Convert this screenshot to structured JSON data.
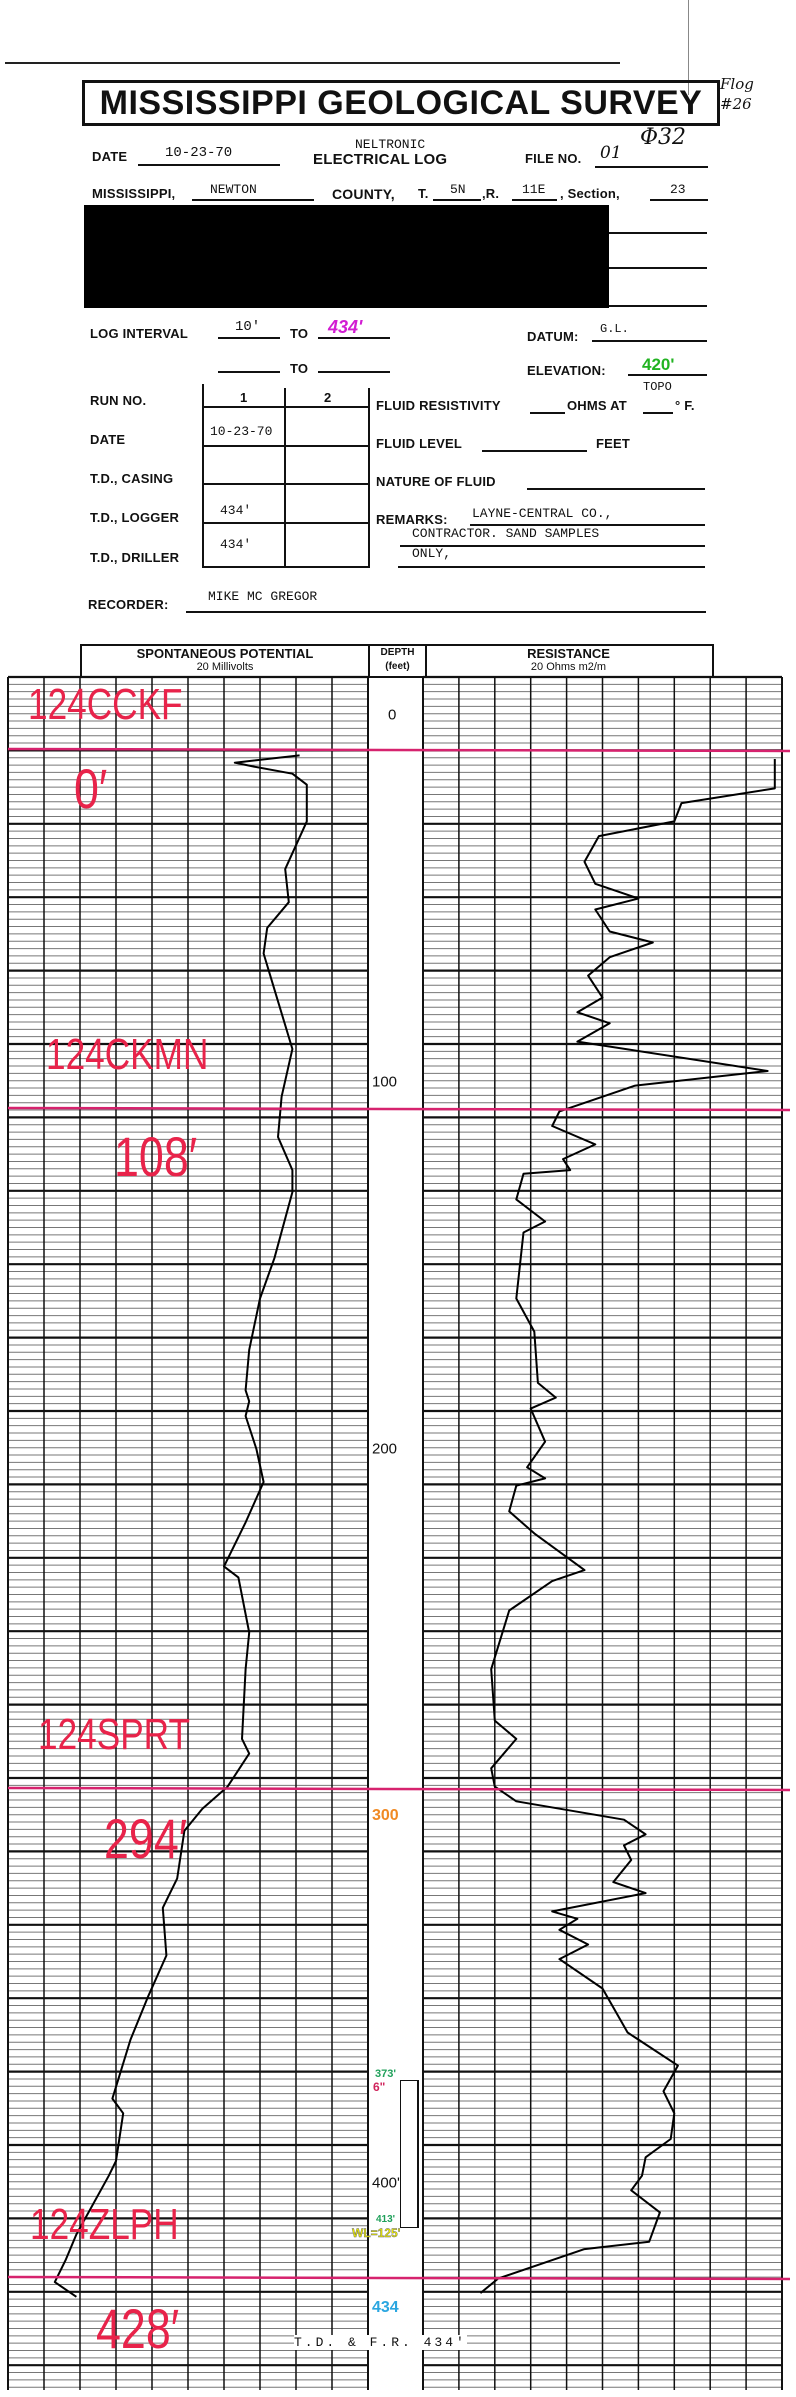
{
  "header": {
    "title": "MISSISSIPPI GEOLOGICAL SURVEY",
    "handwritten_flag": "Flog #26",
    "handwritten_number": "Φ32",
    "date_label": "DATE",
    "date_value": "10-23-70",
    "log_type_top": "NELTRONIC",
    "log_type": "ELECTRICAL LOG",
    "file_no_label": "FILE NO.",
    "file_no_value": "01",
    "state_label": "MISSISSIPPI,",
    "county_value": "NEWTON",
    "county_label": "COUNTY,",
    "township_label": "T.",
    "township_value": "5N",
    "range_label": ",R.",
    "range_value": "11E",
    "section_label": ", Section,",
    "section_value": "23",
    "log_interval_label": "LOG INTERVAL",
    "log_interval_from": "10'",
    "to_label": "TO",
    "log_interval_to": "434'",
    "datum_label": "DATUM:",
    "datum_value": "G.L.",
    "elevation_label": "ELEVATION:",
    "elevation_value": "420'",
    "elevation_note": "TOPO",
    "run_table": {
      "row_labels": [
        "RUN NO.",
        "DATE",
        "T.D., CASING",
        "T.D., LOGGER",
        "T.D., DRILLER"
      ],
      "columns": [
        "1",
        "2"
      ],
      "date_run1": "10-23-70",
      "td_logger_run1": "434'",
      "td_driller_run1": "434'"
    },
    "fluid_resistivity_label": "FLUID RESISTIVITY",
    "ohms_at_label": "OHMS AT",
    "deg_f_label": "° F.",
    "fluid_level_label": "FLUID LEVEL",
    "feet_label": "FEET",
    "nature_of_fluid_label": "NATURE OF FLUID",
    "remarks_label": "REMARKS:",
    "remarks_lines": [
      "LAYNE-CENTRAL CO.,",
      "CONTRACTOR. SAND SAMPLES",
      "ONLY,"
    ],
    "recorder_label": "RECORDER:",
    "recorder_value": "MIKE MC GREGOR"
  },
  "log_header": {
    "sp_title": "SPONTANEOUS POTENTIAL",
    "sp_scale": "20 Millivolts",
    "depth_title": "DEPTH",
    "depth_unit": "(feet)",
    "res_title": "RESISTANCE",
    "res_scale": "20 Ohms m2/m"
  },
  "depth_labels": [
    {
      "text": "0",
      "depth": 0,
      "color": "#111111"
    },
    {
      "text": "100",
      "depth": 100,
      "color": "#111111"
    },
    {
      "text": "200",
      "depth": 200,
      "color": "#111111"
    },
    {
      "text": "300",
      "depth": 300,
      "color": "#f08a24"
    },
    {
      "text": "400'",
      "depth": 400,
      "color": "#111111"
    },
    {
      "text": "434",
      "depth": 434,
      "color": "#2aa6e0"
    }
  ],
  "annotations": {
    "casing_top": "373'",
    "casing_size": "6\"",
    "casing_bottom": "413'",
    "water_level": "WL=125'",
    "total_depth_note": "T.D. & F.R. 434'",
    "colors": {
      "casing_top": "#1fa05a",
      "casing_size": "#d0245c",
      "casing_bottom": "#1fa05a",
      "water_level": "#e8e800"
    }
  },
  "formation_picks": [
    {
      "code": "124CCKF",
      "depth_label": "0′"
    },
    {
      "code": "124CKMN",
      "depth_label": "108′"
    },
    {
      "code": "124SPRT",
      "depth_label": "294′"
    },
    {
      "code": "124ZLPH",
      "depth_label": "428′"
    }
  ],
  "pick_color": "#e8234a",
  "pick_line_color": "#d6236e",
  "chart_data": {
    "type": "line",
    "depth_range_ft": [
      0,
      434
    ],
    "grid": true,
    "series": [
      {
        "name": "SPONTANEOUS POTENTIAL",
        "units": "track divisions from left (0-10)",
        "points": [
          [
            11,
            8.1
          ],
          [
            13,
            6.3
          ],
          [
            14,
            6.8
          ],
          [
            16,
            7.9
          ],
          [
            19,
            8.3
          ],
          [
            29,
            8.3
          ],
          [
            42,
            7.7
          ],
          [
            51,
            7.8
          ],
          [
            58,
            7.2
          ],
          [
            65,
            7.1
          ],
          [
            78,
            7.5
          ],
          [
            91,
            7.9
          ],
          [
            104,
            7.6
          ],
          [
            115,
            7.5
          ],
          [
            124,
            7.9
          ],
          [
            130,
            7.9
          ],
          [
            148,
            7.4
          ],
          [
            159,
            7.0
          ],
          [
            173,
            6.7
          ],
          [
            184,
            6.6
          ],
          [
            187,
            6.7
          ],
          [
            191,
            6.6
          ],
          [
            200,
            6.9
          ],
          [
            209,
            7.1
          ],
          [
            220,
            6.6
          ],
          [
            232,
            6.0
          ],
          [
            235,
            6.4
          ],
          [
            250,
            6.7
          ],
          [
            260,
            6.6
          ],
          [
            279,
            6.5
          ],
          [
            283,
            6.7
          ],
          [
            292,
            6.1
          ],
          [
            298,
            5.4
          ],
          [
            304,
            4.9
          ],
          [
            317,
            4.7
          ],
          [
            325,
            4.3
          ],
          [
            338,
            4.4
          ],
          [
            349,
            3.9
          ],
          [
            361,
            3.4
          ],
          [
            377,
            2.9
          ],
          [
            381,
            3.2
          ],
          [
            394,
            3.0
          ],
          [
            398,
            2.8
          ],
          [
            414,
            1.9
          ],
          [
            421,
            1.6
          ],
          [
            427,
            1.3
          ],
          [
            431,
            1.9
          ]
        ]
      },
      {
        "name": "RESISTANCE",
        "units": "track divisions from left (0-10)",
        "points": [
          [
            12,
            9.8
          ],
          [
            20,
            9.8
          ],
          [
            24,
            7.2
          ],
          [
            29,
            7.0
          ],
          [
            33,
            4.9
          ],
          [
            40,
            4.5
          ],
          [
            46,
            4.8
          ],
          [
            50,
            6.0
          ],
          [
            53,
            4.8
          ],
          [
            59,
            5.2
          ],
          [
            62,
            6.4
          ],
          [
            66,
            5.2
          ],
          [
            71,
            4.6
          ],
          [
            77,
            5.0
          ],
          [
            81,
            4.3
          ],
          [
            84,
            5.2
          ],
          [
            89,
            4.3
          ],
          [
            97,
            9.6
          ],
          [
            101,
            5.9
          ],
          [
            108,
            3.8
          ],
          [
            112,
            3.6
          ],
          [
            117,
            4.8
          ],
          [
            121,
            3.9
          ],
          [
            124,
            4.1
          ],
          [
            125,
            2.8
          ],
          [
            132,
            2.6
          ],
          [
            138,
            3.4
          ],
          [
            141,
            2.8
          ],
          [
            159,
            2.6
          ],
          [
            168,
            3.1
          ],
          [
            182,
            3.2
          ],
          [
            186,
            3.7
          ],
          [
            189,
            3.0
          ],
          [
            198,
            3.4
          ],
          [
            205,
            2.9
          ],
          [
            208,
            3.4
          ],
          [
            210,
            2.6
          ],
          [
            217,
            2.4
          ],
          [
            223,
            3.1
          ],
          [
            233,
            4.5
          ],
          [
            236,
            3.6
          ],
          [
            244,
            2.4
          ],
          [
            260,
            1.9
          ],
          [
            274,
            2.0
          ],
          [
            279,
            2.6
          ],
          [
            287,
            1.9
          ],
          [
            292,
            2.0
          ],
          [
            296,
            2.6
          ],
          [
            301,
            5.6
          ],
          [
            305,
            6.2
          ],
          [
            308,
            5.6
          ],
          [
            312,
            5.8
          ],
          [
            318,
            5.3
          ],
          [
            321,
            6.2
          ],
          [
            326,
            3.6
          ],
          [
            328,
            4.3
          ],
          [
            331,
            3.8
          ],
          [
            335,
            4.6
          ],
          [
            339,
            3.8
          ],
          [
            347,
            5.0
          ],
          [
            359,
            5.7
          ],
          [
            368,
            7.1
          ],
          [
            375,
            6.7
          ],
          [
            381,
            7.0
          ],
          [
            388,
            6.9
          ],
          [
            393,
            6.2
          ],
          [
            398,
            6.1
          ],
          [
            402,
            5.8
          ],
          [
            408,
            6.6
          ],
          [
            416,
            6.3
          ],
          [
            418,
            4.5
          ],
          [
            426,
            2.1
          ],
          [
            430,
            1.6
          ]
        ]
      }
    ]
  }
}
